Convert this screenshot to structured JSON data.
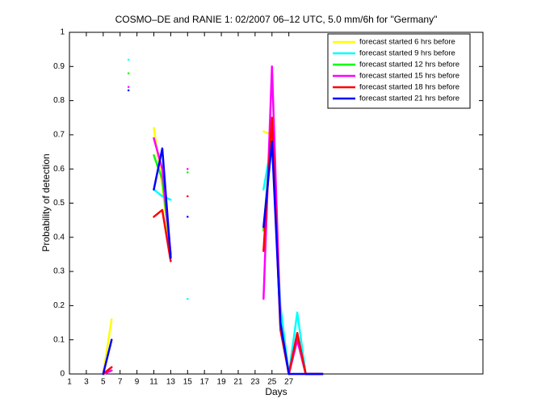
{
  "chart_data": {
    "type": "line",
    "title": "COSMO–DE and RANIE 1: 02/2007 06–12 UTC, 5.0 mm/6h for \"Germany\"",
    "xlabel": "Days",
    "ylabel": "Probability of detection",
    "x": [
      1,
      2,
      3,
      4,
      5,
      6,
      7,
      8,
      9,
      10,
      11,
      12,
      13,
      14,
      15,
      16,
      17,
      18,
      19,
      20,
      21,
      22,
      23,
      24,
      25,
      26,
      27,
      28,
      29,
      30,
      31
    ],
    "series": [
      {
        "name": "forecast started 6 hrs before",
        "color": "#ffff00",
        "values": [
          null,
          null,
          null,
          null,
          0,
          0.16,
          null,
          0.88,
          null,
          null,
          0.72,
          0.55,
          0.35,
          null,
          null,
          null,
          null,
          null,
          null,
          null,
          null,
          null,
          null,
          0.71,
          0.7,
          0.15,
          0,
          0.1,
          0,
          0,
          0
        ]
      },
      {
        "name": "forecast started 9 hrs before",
        "color": "#00ffff",
        "values": [
          null,
          null,
          null,
          null,
          0,
          0.01,
          null,
          0.92,
          null,
          null,
          0.54,
          0.52,
          0.51,
          null,
          0.22,
          null,
          null,
          null,
          null,
          null,
          null,
          null,
          null,
          0.54,
          0.68,
          0.2,
          0,
          0.18,
          0,
          0,
          0
        ]
      },
      {
        "name": "forecast started 12 hrs before",
        "color": "#00ff00",
        "values": [
          null,
          null,
          null,
          null,
          0,
          0.01,
          null,
          0.88,
          null,
          null,
          0.64,
          0.57,
          0.35,
          null,
          0.59,
          null,
          null,
          null,
          null,
          null,
          null,
          null,
          null,
          0.42,
          0.72,
          0.15,
          0,
          0.1,
          0,
          0,
          0
        ]
      },
      {
        "name": "forecast started 15 hrs before",
        "color": "#ff00ff",
        "values": [
          null,
          null,
          null,
          null,
          0,
          0.01,
          null,
          0.84,
          null,
          null,
          0.69,
          0.6,
          0.35,
          null,
          0.6,
          null,
          null,
          null,
          null,
          null,
          null,
          null,
          null,
          0.22,
          0.9,
          0.15,
          0,
          0.1,
          0,
          0,
          0
        ]
      },
      {
        "name": "forecast started 18 hrs before",
        "color": "#ff0000",
        "values": [
          null,
          null,
          null,
          null,
          0,
          0.02,
          null,
          null,
          null,
          null,
          0.46,
          0.48,
          0.33,
          null,
          0.52,
          null,
          null,
          null,
          null,
          null,
          null,
          null,
          null,
          0.36,
          0.75,
          0.13,
          0,
          0.12,
          0,
          0,
          0
        ]
      },
      {
        "name": "forecast started 21 hrs before",
        "color": "#0000ff",
        "values": [
          null,
          null,
          null,
          null,
          0,
          0.1,
          null,
          0.83,
          null,
          null,
          0.54,
          0.66,
          0.34,
          null,
          0.46,
          null,
          null,
          null,
          null,
          null,
          null,
          null,
          null,
          0.43,
          0.68,
          0.15,
          0,
          0,
          0,
          0,
          0
        ]
      }
    ],
    "xlim": [
      1,
      50
    ],
    "ylim": [
      0,
      1
    ],
    "xticks": [
      1,
      3,
      5,
      7,
      9,
      11,
      13,
      15,
      17,
      19,
      21,
      23,
      25,
      27
    ],
    "yticks": [
      0,
      0.1,
      0.2,
      0.3,
      0.4,
      0.5,
      0.6,
      0.7,
      0.8,
      0.9,
      1
    ],
    "legend": "upper right",
    "grid": false
  }
}
